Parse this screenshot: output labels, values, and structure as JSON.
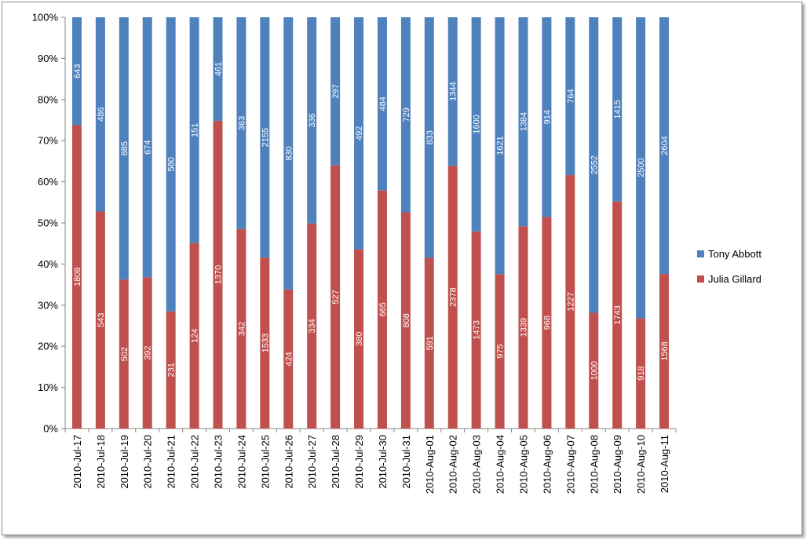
{
  "chart_data": {
    "type": "bar",
    "stacked": "percent",
    "categories": [
      "2010-Jul-17",
      "2010-Jul-18",
      "2010-Jul-19",
      "2010-Jul-20",
      "2010-Jul-21",
      "2010-Jul-22",
      "2010-Jul-23",
      "2010-Jul-24",
      "2010-Jul-25",
      "2010-Jul-26",
      "2010-Jul-27",
      "2010-Jul-28",
      "2010-Jul-29",
      "2010-Jul-30",
      "2010-Jul-31",
      "2010-Aug-01",
      "2010-Aug-02",
      "2010-Aug-03",
      "2010-Aug-04",
      "2010-Aug-05",
      "2010-Aug-06",
      "2010-Aug-07",
      "2010-Aug-08",
      "2010-Aug-09",
      "2010-Aug-10",
      "2010-Aug-11"
    ],
    "series": [
      {
        "name": "Julia Gillard",
        "color": "#c0504d",
        "values": [
          1808,
          543,
          502,
          392,
          231,
          124,
          1370,
          342,
          1533,
          424,
          334,
          527,
          380,
          665,
          808,
          591,
          2378,
          1473,
          975,
          1339,
          968,
          1227,
          1000,
          1743,
          918,
          1568
        ]
      },
      {
        "name": "Tony Abbott",
        "color": "#4f81bd",
        "values": [
          643,
          486,
          885,
          674,
          580,
          151,
          461,
          363,
          2155,
          830,
          336,
          297,
          492,
          484,
          729,
          833,
          1344,
          1600,
          1621,
          1384,
          914,
          764,
          2552,
          1415,
          2500,
          2604
        ]
      }
    ],
    "yticks": [
      "0%",
      "10%",
      "20%",
      "30%",
      "40%",
      "50%",
      "60%",
      "70%",
      "80%",
      "90%",
      "100%"
    ],
    "ylim": [
      0,
      100
    ],
    "title": "",
    "xlabel": "",
    "ylabel": "",
    "grid": false,
    "legend": {
      "position": "right",
      "order": [
        "Tony Abbott",
        "Julia Gillard"
      ]
    }
  }
}
